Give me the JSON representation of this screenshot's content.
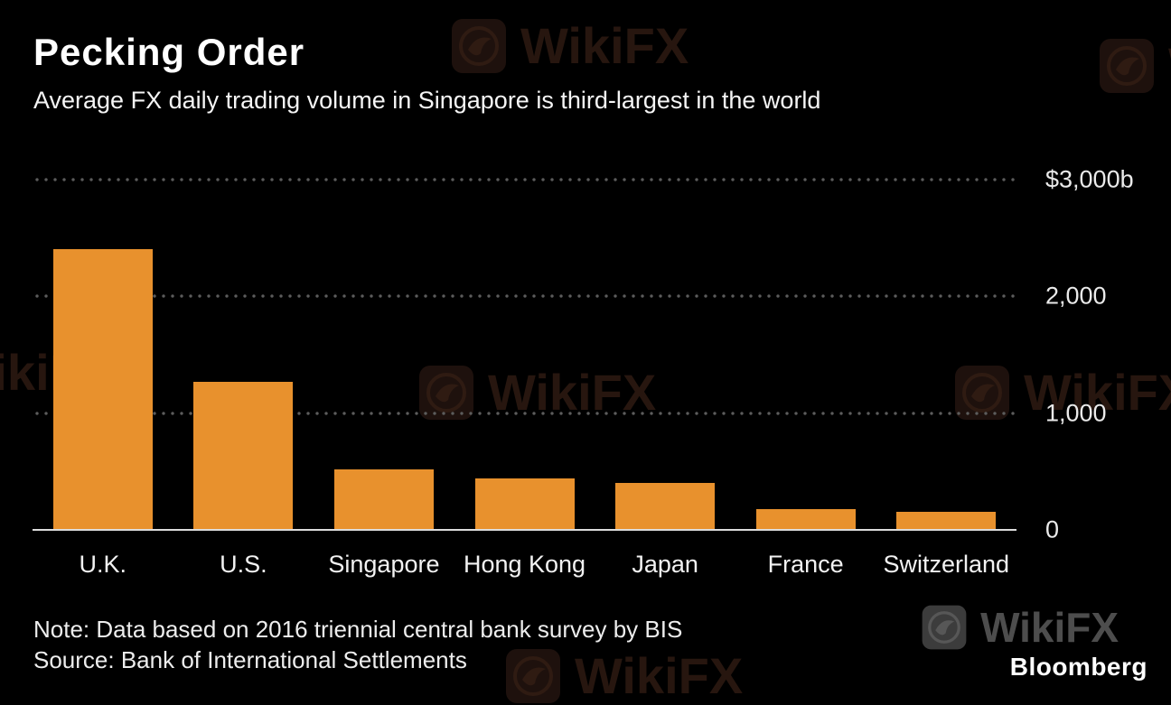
{
  "header": {
    "title": "Pecking Order",
    "subtitle": "Average FX daily trading volume in Singapore is third-largest in the world"
  },
  "chart_data": {
    "type": "bar",
    "title": "Pecking Order",
    "subtitle": "Average FX daily trading volume in Singapore is third-largest in the world",
    "categories": [
      "U.K.",
      "U.S.",
      "Singapore",
      "Hong Kong",
      "Japan",
      "France",
      "Switzerland"
    ],
    "values": [
      2406,
      1272,
      517,
      437,
      399,
      181,
      156
    ],
    "ylim": [
      0,
      3000
    ],
    "yticks": [
      {
        "value": 3000,
        "label": "$3,000b"
      },
      {
        "value": 2000,
        "label": "2,000"
      },
      {
        "value": 1000,
        "label": "1,000"
      },
      {
        "value": 0,
        "label": "0"
      }
    ],
    "ytick_position": "right",
    "grid": "dotted-horizontal",
    "bar_color": "#E8912D",
    "background_color": "#000000"
  },
  "footer": {
    "note": "Note: Data based on 2016 triennial central bank survey by BIS",
    "source": "Source: Bank of International Settlements",
    "bloomberg_logo": "Bloomberg"
  },
  "watermark": {
    "text": "WikiFX"
  }
}
